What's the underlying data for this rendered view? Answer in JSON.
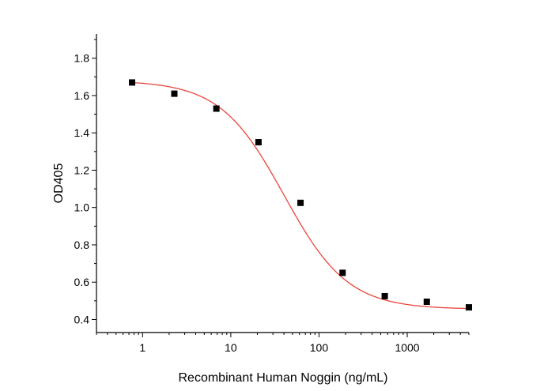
{
  "chart_data": {
    "type": "scatter",
    "title": "",
    "xlabel": "Recombinant Human Noggin (ng/mL)",
    "ylabel": "OD405",
    "x_scale": "log",
    "xlim": [
      0.3,
      5000
    ],
    "ylim": [
      0.33,
      1.93
    ],
    "x_ticks": [
      {
        "value": 1,
        "label": "1"
      },
      {
        "value": 10,
        "label": "10"
      },
      {
        "value": 100,
        "label": "100"
      },
      {
        "value": 1000,
        "label": "1000"
      }
    ],
    "y_ticks": [
      {
        "value": 0.4,
        "label": "0.4"
      },
      {
        "value": 0.6,
        "label": "0.6"
      },
      {
        "value": 0.8,
        "label": "0.8"
      },
      {
        "value": 1.0,
        "label": "1.0"
      },
      {
        "value": 1.2,
        "label": "1.2"
      },
      {
        "value": 1.4,
        "label": "1.4"
      },
      {
        "value": 1.6,
        "label": "1.6"
      },
      {
        "value": 1.8,
        "label": "1.8"
      }
    ],
    "grid": false,
    "legend": "none",
    "series": [
      {
        "kind": "points",
        "marker": "square",
        "color": "#000000",
        "x": [
          0.76,
          2.29,
          6.86,
          20.6,
          61.7,
          185,
          556,
          1667,
          5000
        ],
        "y": [
          1.67,
          1.61,
          1.53,
          1.35,
          1.025,
          0.65,
          0.525,
          0.495,
          0.465
        ]
      },
      {
        "kind": "fitted-curve",
        "model": "4PL",
        "color": "#e8463c",
        "top": 1.68,
        "bottom": 0.455,
        "ec50": 40,
        "hill": 1.2
      }
    ]
  }
}
